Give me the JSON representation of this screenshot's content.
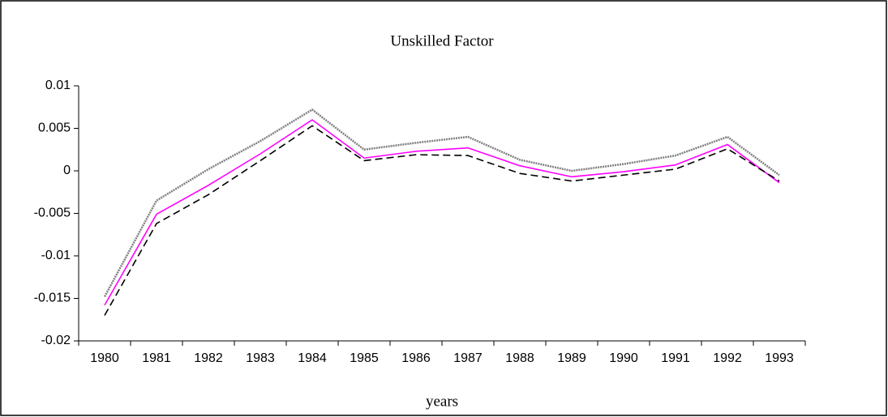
{
  "chart_data": {
    "type": "line",
    "title": "Unskilled Factor",
    "x_label": "years",
    "categories": [
      "1980",
      "1981",
      "1982",
      "1983",
      "1984",
      "1985",
      "1986",
      "1987",
      "1988",
      "1989",
      "1990",
      "1991",
      "1992",
      "1993"
    ],
    "series": [
      {
        "color": "#808080",
        "style": "dotted",
        "values": [
          -0.0148,
          -0.0035,
          0.0002,
          0.0035,
          0.0072,
          0.0025,
          0.0033,
          0.004,
          0.0013,
          0.0,
          0.0008,
          0.0018,
          0.004,
          -0.0005
        ]
      },
      {
        "color": "#ff00ff",
        "style": "solid",
        "values": [
          -0.0158,
          -0.0051,
          -0.0017,
          0.002,
          0.006,
          0.0015,
          0.0023,
          0.0027,
          0.0006,
          -0.0007,
          -0.0001,
          0.0007,
          0.0031,
          -0.0014
        ]
      },
      {
        "color": "#000000",
        "style": "dashed",
        "values": [
          -0.017,
          -0.0062,
          -0.0028,
          0.0012,
          0.0053,
          0.0012,
          0.0019,
          0.0018,
          -0.0003,
          -0.0012,
          -0.0005,
          0.0002,
          0.0026,
          -0.0012
        ]
      }
    ],
    "ylim": [
      -0.02,
      0.01
    ],
    "yticks": [
      -0.02,
      -0.015,
      -0.01,
      -0.005,
      0,
      0.005,
      0.01
    ],
    "grid": false
  }
}
